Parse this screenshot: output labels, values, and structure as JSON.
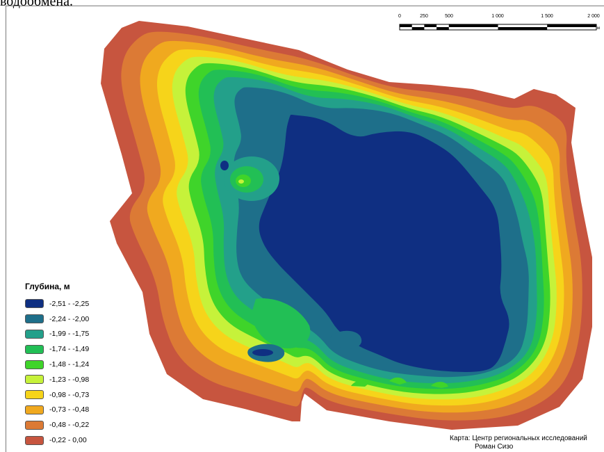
{
  "caption": "водообмена.",
  "legend": {
    "title": "Глубина, м",
    "classes": [
      {
        "label": "-2,51 - -2,25",
        "color": "#0f2f82"
      },
      {
        "label": "-2,24 - -2,00",
        "color": "#1e6f8a"
      },
      {
        "label": "-1,99 - -1,75",
        "color": "#23a08a"
      },
      {
        "label": "-1,74 - -1,49",
        "color": "#22bf55"
      },
      {
        "label": "-1,48 - -1,24",
        "color": "#3fd42a"
      },
      {
        "label": "-1,23 - -0,98",
        "color": "#c6f23a"
      },
      {
        "label": "-0,98 - -0,73",
        "color": "#f6d41a"
      },
      {
        "label": "-0,73 - -0,48",
        "color": "#f0a91f"
      },
      {
        "label": "-0,48 - -0,22",
        "color": "#dc7a35"
      },
      {
        "label": "-0,22 - 0,00",
        "color": "#c7553f"
      }
    ]
  },
  "scale_bar": {
    "ticks": [
      "0",
      "250",
      "500",
      "1 000",
      "1 500",
      "2 000"
    ],
    "unit": "м"
  },
  "credit": {
    "line1": "Карта: Центр региональных исследований",
    "line2": "Роман Сизо"
  }
}
